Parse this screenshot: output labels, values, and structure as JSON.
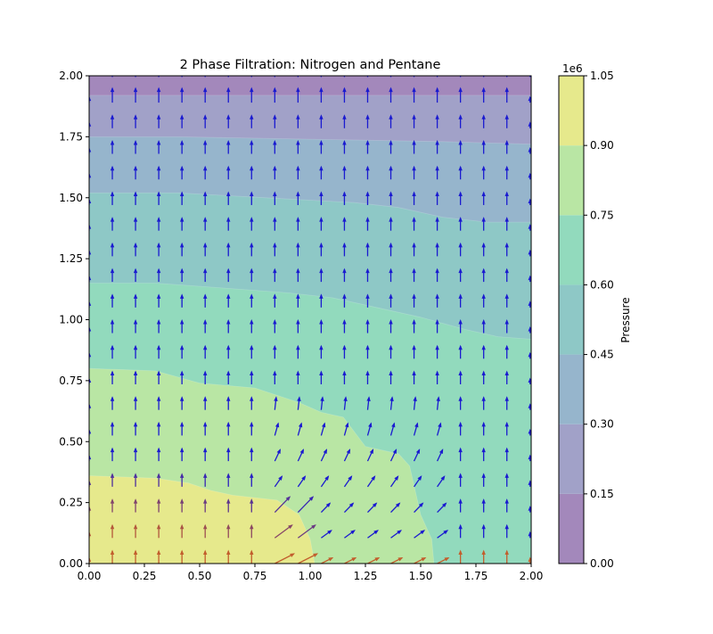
{
  "chart_data": {
    "type": "contour",
    "title": "2 Phase Filtration: Nitrogen and Pentane",
    "xlabel": "",
    "ylabel": "",
    "xlim": [
      0,
      2
    ],
    "ylim": [
      0,
      2
    ],
    "x_ticks": [
      "0.00",
      "0.25",
      "0.50",
      "0.75",
      "1.00",
      "1.25",
      "1.50",
      "1.75",
      "2.00"
    ],
    "y_ticks": [
      "0.00",
      "0.25",
      "0.50",
      "0.75",
      "1.00",
      "1.25",
      "1.50",
      "1.75",
      "2.00"
    ],
    "colorbar": {
      "label": "Pressure",
      "offset_text": "1e6",
      "levels": [
        0.0,
        0.15,
        0.3,
        0.45,
        0.6,
        0.75,
        0.9,
        1.05
      ],
      "tick_labels": [
        "0.00",
        "0.15",
        "0.30",
        "0.45",
        "0.60",
        "0.75",
        "0.90",
        "1.05"
      ],
      "colors": [
        "#a388bb",
        "#a1a1c8",
        "#96b5cc",
        "#8ec8c6",
        "#92dabd",
        "#b9e6a4",
        "#e6e98c"
      ]
    },
    "contour_boundaries": [
      {
        "level": 0.15,
        "points": [
          [
            0,
            1.92
          ],
          [
            2,
            1.92
          ]
        ]
      },
      {
        "level": 0.3,
        "points": [
          [
            0,
            1.75
          ],
          [
            0.4,
            1.75
          ],
          [
            1.0,
            1.74
          ],
          [
            1.6,
            1.73
          ],
          [
            2,
            1.72
          ]
        ]
      },
      {
        "level": 0.45,
        "points": [
          [
            0,
            1.52
          ],
          [
            0.4,
            1.52
          ],
          [
            0.8,
            1.5
          ],
          [
            1.0,
            1.49
          ],
          [
            1.2,
            1.48
          ],
          [
            1.4,
            1.46
          ],
          [
            1.6,
            1.42
          ],
          [
            1.8,
            1.4
          ],
          [
            2,
            1.4
          ]
        ]
      },
      {
        "level": 0.6,
        "points": [
          [
            0,
            1.15
          ],
          [
            0.3,
            1.15
          ],
          [
            0.6,
            1.13
          ],
          [
            0.9,
            1.11
          ],
          [
            1.1,
            1.09
          ],
          [
            1.3,
            1.05
          ],
          [
            1.5,
            1.01
          ],
          [
            1.7,
            0.96
          ],
          [
            1.85,
            0.93
          ],
          [
            2,
            0.92
          ]
        ]
      },
      {
        "level": 0.75,
        "points": [
          [
            0,
            0.8
          ],
          [
            0.3,
            0.79
          ],
          [
            0.5,
            0.74
          ],
          [
            0.75,
            0.72
          ],
          [
            0.95,
            0.66
          ],
          [
            1.05,
            0.62
          ],
          [
            1.15,
            0.6
          ],
          [
            1.25,
            0.48
          ],
          [
            1.35,
            0.46
          ],
          [
            1.4,
            0.45
          ],
          [
            1.45,
            0.4
          ],
          [
            1.5,
            0.2
          ],
          [
            1.55,
            0.1
          ],
          [
            1.56,
            0
          ]
        ]
      },
      {
        "level": 0.9,
        "points": [
          [
            0,
            0.36
          ],
          [
            0.3,
            0.35
          ],
          [
            0.45,
            0.33
          ],
          [
            0.55,
            0.3
          ],
          [
            0.65,
            0.28
          ],
          [
            0.85,
            0.26
          ],
          [
            0.95,
            0.2
          ],
          [
            1.0,
            0.1
          ],
          [
            1.02,
            0
          ]
        ]
      }
    ],
    "quiver": {
      "x_start": 0.0,
      "dx": 0.105,
      "n_cols": 20,
      "y_start": 0.0,
      "dy": 0.105,
      "n_rows": 20,
      "flow_direction": "upward, deflected right near the lower-center front",
      "color_low_pressure": "#1a1ad0",
      "color_high_pressure": "#e06a10"
    }
  }
}
